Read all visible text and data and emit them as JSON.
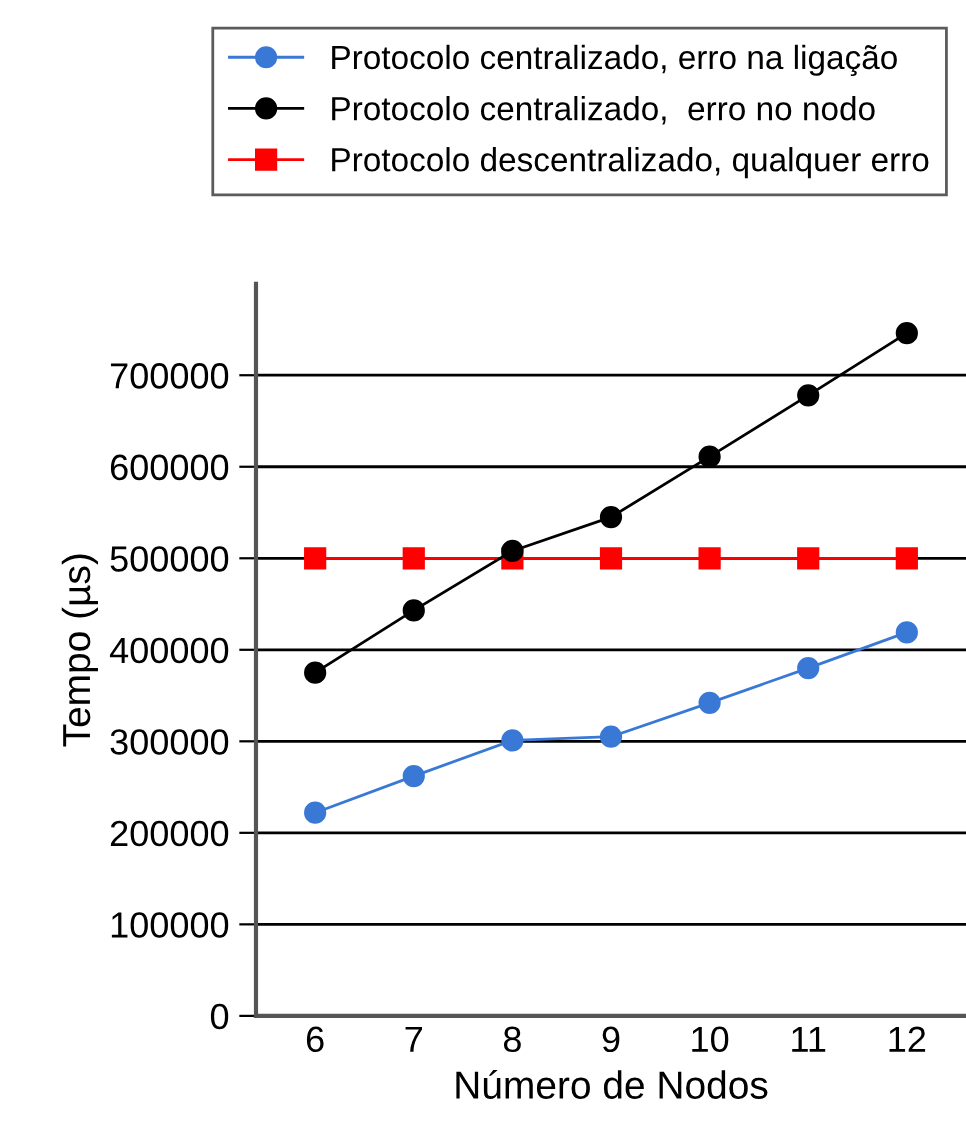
{
  "chart_data": {
    "type": "line",
    "xlabel": "Número de Nodos",
    "ylabel": "Tempo (µs)",
    "categories": [
      "6",
      "7",
      "8",
      "9",
      "10",
      "11",
      "12"
    ],
    "series": [
      {
        "name": "Protocolo centralizado, erro na ligação",
        "color": "#3a78d6",
        "marker": "circle",
        "values": [
          222000,
          262000,
          301000,
          305000,
          342000,
          380000,
          419000
        ]
      },
      {
        "name": "Protocolo centralizado,  erro no nodo",
        "color": "#000000",
        "marker": "circle",
        "values": [
          375000,
          443000,
          508000,
          545000,
          611000,
          678000,
          746000
        ]
      },
      {
        "name": "Protocolo descentralizado, qualquer erro",
        "color": "#ff0000",
        "marker": "square",
        "values": [
          500000,
          500000,
          500000,
          500000,
          500000,
          500000,
          500000
        ]
      }
    ],
    "ylim": [
      0,
      800000
    ],
    "yticks": [
      0,
      100000,
      200000,
      300000,
      400000,
      500000,
      600000,
      700000
    ],
    "grid": "y",
    "legend": "top",
    "line_style": "solid"
  }
}
